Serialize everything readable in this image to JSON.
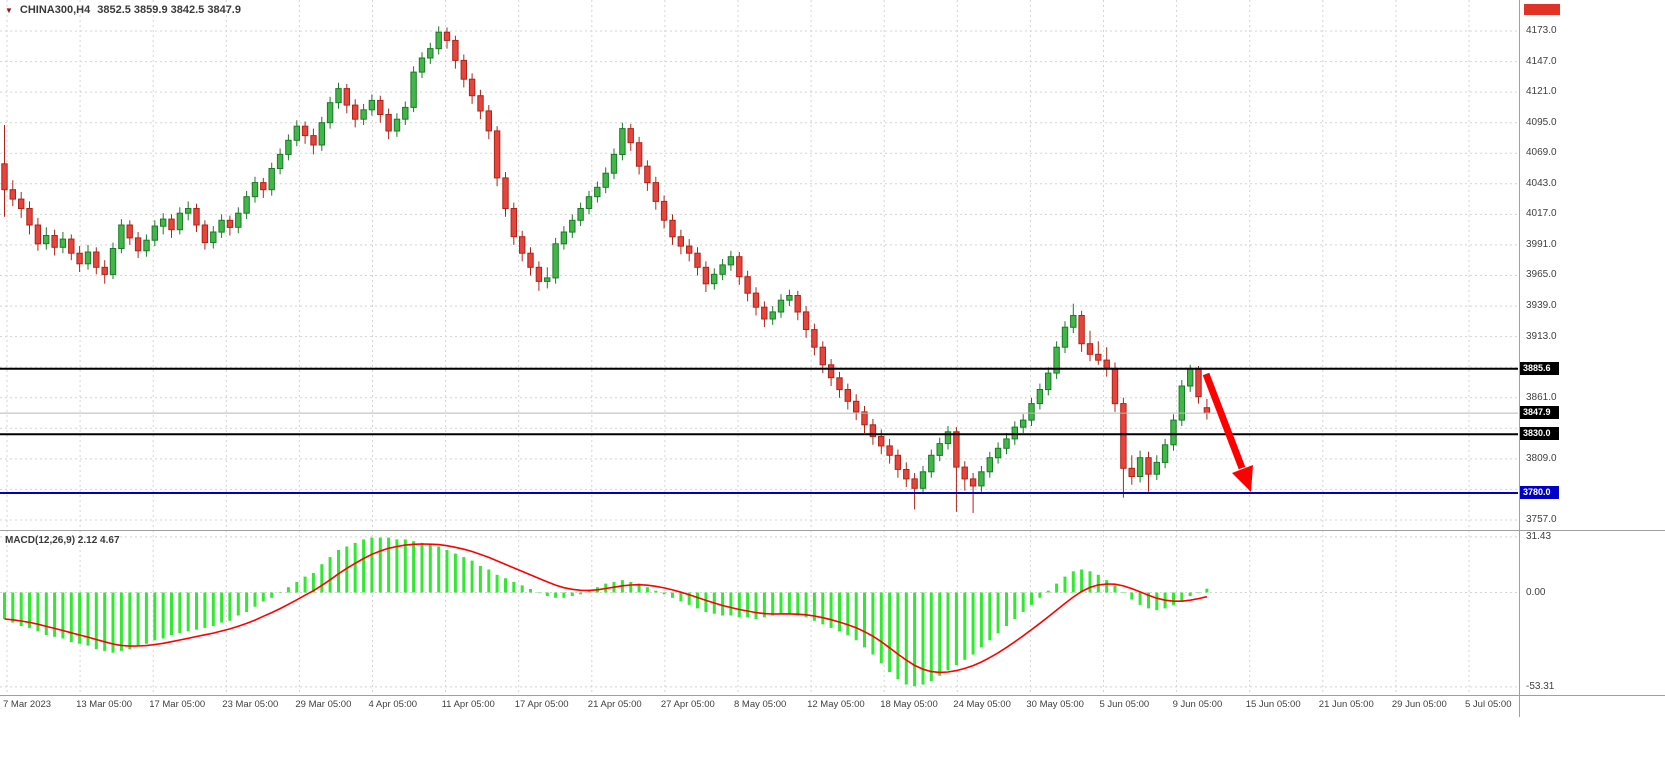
{
  "header": {
    "symbol": "CHINA300,H4",
    "ohlc": "3852.5 3859.9 3842.5 3847.9"
  },
  "colors": {
    "background": "#FFFFFF",
    "grid": "#D4D4D4",
    "candle_up": "#43B649",
    "candle_up_border": "#1A7A26",
    "candle_down": "#E5453C",
    "candle_down_border": "#AE2418",
    "macd_hist": "#33E833",
    "macd_signal": "#FF0000",
    "line_black": "#000000",
    "line_blue": "#0000C8",
    "arrow": "#FF0000",
    "marker_red": "#E03226"
  },
  "chart_data": {
    "type": "candlestick",
    "title": "CHINA300,H4",
    "symbol": "CHINA300",
    "timeframe": "H4",
    "current_ohlc": {
      "open": 3852.5,
      "high": 3859.9,
      "low": 3842.5,
      "close": 3847.9
    },
    "price_axis": {
      "grid_max": 4173,
      "grid_min": 3757,
      "grid_step": 26,
      "visible_values": [
        4173,
        4147,
        4121,
        4095,
        4069,
        4043,
        4017,
        3991,
        3965,
        3939,
        3913,
        3861,
        3809,
        3757
      ]
    },
    "line_markers": [
      {
        "label": "3885.6",
        "price": 3885.6,
        "color": "#000000",
        "box": "#000000",
        "width": 2
      },
      {
        "label": "3847.9",
        "price": 3847.9,
        "color": "#B8B8B8",
        "box": "#000000",
        "width": 1
      },
      {
        "label": "3830.0",
        "price": 3830.0,
        "color": "#000000",
        "box": "#000000",
        "width": 2
      },
      {
        "label": "3780.0",
        "price": 3780.0,
        "color": "#0000C8",
        "box": "#0000C8",
        "width": 2
      }
    ],
    "x_axis_labels": [
      "7 Mar 2023",
      "13 Mar 05:00",
      "17 Mar 05:00",
      "23 Mar 05:00",
      "29 Mar 05:00",
      "4 Apr 05:00",
      "11 Apr 05:00",
      "17 Apr 05:00",
      "21 Apr 05:00",
      "27 Apr 05:00",
      "8 May 05:00",
      "12 May 05:00",
      "18 May 05:00",
      "24 May 05:00",
      "30 May 05:00",
      "5 Jun 05:00",
      "9 Jun 05:00",
      "15 Jun 05:00",
      "21 Jun 05:00",
      "29 Jun 05:00",
      "5 Jul 05:00"
    ],
    "candles": [
      [
        4060,
        4093,
        4015,
        4038
      ],
      [
        4038,
        4046,
        4024,
        4030
      ],
      [
        4030,
        4036,
        4014,
        4022
      ],
      [
        4022,
        4028,
        4000,
        4008
      ],
      [
        4008,
        4014,
        3986,
        3992
      ],
      [
        3992,
        4006,
        3987,
        3999
      ],
      [
        3999,
        4004,
        3982,
        3989
      ],
      [
        3989,
        4002,
        3984,
        3996
      ],
      [
        3996,
        4000,
        3978,
        3984
      ],
      [
        3984,
        3990,
        3968,
        3975
      ],
      [
        3975,
        3991,
        3970,
        3985
      ],
      [
        3985,
        3989,
        3966,
        3972
      ],
      [
        3972,
        3978,
        3958,
        3966
      ],
      [
        3966,
        3993,
        3962,
        3988
      ],
      [
        3988,
        4013,
        3984,
        4008
      ],
      [
        4008,
        4012,
        3991,
        3997
      ],
      [
        3997,
        4002,
        3980,
        3986
      ],
      [
        3986,
        4000,
        3981,
        3995
      ],
      [
        3995,
        4012,
        3990,
        4007
      ],
      [
        4007,
        4018,
        4000,
        4013
      ],
      [
        4013,
        4017,
        3997,
        4004
      ],
      [
        4004,
        4023,
        4000,
        4018
      ],
      [
        4018,
        4028,
        4012,
        4022
      ],
      [
        4022,
        4026,
        4002,
        4008
      ],
      [
        4008,
        4012,
        3987,
        3993
      ],
      [
        3993,
        4007,
        3988,
        4002
      ],
      [
        4002,
        4017,
        3997,
        4012
      ],
      [
        4012,
        4016,
        3999,
        4006
      ],
      [
        4006,
        4023,
        4001,
        4018
      ],
      [
        4018,
        4037,
        4013,
        4032
      ],
      [
        4032,
        4049,
        4027,
        4044
      ],
      [
        4044,
        4048,
        4031,
        4038
      ],
      [
        4038,
        4061,
        4033,
        4056
      ],
      [
        4056,
        4073,
        4051,
        4068
      ],
      [
        4068,
        4085,
        4063,
        4080
      ],
      [
        4080,
        4097,
        4075,
        4092
      ],
      [
        4092,
        4096,
        4077,
        4084
      ],
      [
        4084,
        4090,
        4068,
        4076
      ],
      [
        4076,
        4100,
        4071,
        4095
      ],
      [
        4095,
        4117,
        4090,
        4112
      ],
      [
        4112,
        4129,
        4107,
        4124
      ],
      [
        4124,
        4128,
        4103,
        4110
      ],
      [
        4110,
        4115,
        4091,
        4098
      ],
      [
        4098,
        4111,
        4093,
        4106
      ],
      [
        4106,
        4119,
        4101,
        4114
      ],
      [
        4114,
        4118,
        4095,
        4102
      ],
      [
        4102,
        4107,
        4081,
        4088
      ],
      [
        4088,
        4103,
        4083,
        4098
      ],
      [
        4098,
        4113,
        4093,
        4108
      ],
      [
        4108,
        4143,
        4104,
        4138
      ],
      [
        4138,
        4155,
        4133,
        4150
      ],
      [
        4150,
        4163,
        4145,
        4158
      ],
      [
        4158,
        4177,
        4153,
        4172
      ],
      [
        4172,
        4176,
        4158,
        4165
      ],
      [
        4165,
        4169,
        4141,
        4148
      ],
      [
        4148,
        4153,
        4125,
        4132
      ],
      [
        4132,
        4137,
        4111,
        4118
      ],
      [
        4118,
        4123,
        4098,
        4105
      ],
      [
        4105,
        4110,
        4081,
        4088
      ],
      [
        4088,
        4092,
        4041,
        4048
      ],
      [
        4048,
        4053,
        4015,
        4022
      ],
      [
        4022,
        4027,
        3991,
        3998
      ],
      [
        3998,
        4003,
        3977,
        3984
      ],
      [
        3984,
        3989,
        3965,
        3972
      ],
      [
        3972,
        3977,
        3952,
        3960
      ],
      [
        3960,
        3972,
        3954,
        3963
      ],
      [
        3963,
        3997,
        3958,
        3992
      ],
      [
        3992,
        4007,
        3987,
        4002
      ],
      [
        4002,
        4017,
        3997,
        4012
      ],
      [
        4012,
        4027,
        4007,
        4022
      ],
      [
        4022,
        4037,
        4017,
        4032
      ],
      [
        4032,
        4045,
        4027,
        4040
      ],
      [
        4040,
        4057,
        4035,
        4052
      ],
      [
        4052,
        4073,
        4047,
        4068
      ],
      [
        4068,
        4095,
        4063,
        4090
      ],
      [
        4090,
        4094,
        4071,
        4078
      ],
      [
        4078,
        4083,
        4051,
        4058
      ],
      [
        4058,
        4063,
        4037,
        4044
      ],
      [
        4044,
        4049,
        4021,
        4028
      ],
      [
        4028,
        4033,
        4005,
        4012
      ],
      [
        4012,
        4017,
        3991,
        3998
      ],
      [
        3998,
        4004,
        3983,
        3990
      ],
      [
        3990,
        3996,
        3977,
        3984
      ],
      [
        3984,
        3989,
        3965,
        3972
      ],
      [
        3972,
        3977,
        3951,
        3958
      ],
      [
        3958,
        3971,
        3953,
        3966
      ],
      [
        3966,
        3979,
        3961,
        3974
      ],
      [
        3974,
        3986,
        3969,
        3981
      ],
      [
        3981,
        3985,
        3957,
        3964
      ],
      [
        3964,
        3969,
        3943,
        3950
      ],
      [
        3950,
        3955,
        3931,
        3938
      ],
      [
        3938,
        3943,
        3921,
        3928
      ],
      [
        3928,
        3939,
        3923,
        3934
      ],
      [
        3934,
        3949,
        3929,
        3944
      ],
      [
        3944,
        3953,
        3939,
        3948
      ],
      [
        3948,
        3952,
        3927,
        3934
      ],
      [
        3934,
        3939,
        3912,
        3919
      ],
      [
        3919,
        3924,
        3897,
        3904
      ],
      [
        3904,
        3909,
        3882,
        3889
      ],
      [
        3889,
        3894,
        3871,
        3878
      ],
      [
        3878,
        3883,
        3861,
        3868
      ],
      [
        3868,
        3873,
        3851,
        3858
      ],
      [
        3858,
        3864,
        3842,
        3849
      ],
      [
        3849,
        3854,
        3831,
        3838
      ],
      [
        3838,
        3843,
        3821,
        3828
      ],
      [
        3828,
        3834,
        3813,
        3820
      ],
      [
        3820,
        3826,
        3805,
        3812
      ],
      [
        3812,
        3817,
        3793,
        3800
      ],
      [
        3800,
        3806,
        3785,
        3792
      ],
      [
        3792,
        3797,
        3766,
        3784
      ],
      [
        3784,
        3803,
        3779,
        3798
      ],
      [
        3798,
        3817,
        3793,
        3812
      ],
      [
        3812,
        3827,
        3807,
        3822
      ],
      [
        3822,
        3837,
        3817,
        3832
      ],
      [
        3832,
        3836,
        3764,
        3802
      ],
      [
        3802,
        3807,
        3782,
        3792
      ],
      [
        3792,
        3797,
        3763,
        3786
      ],
      [
        3786,
        3803,
        3781,
        3798
      ],
      [
        3798,
        3815,
        3793,
        3810
      ],
      [
        3810,
        3823,
        3805,
        3818
      ],
      [
        3818,
        3831,
        3813,
        3826
      ],
      [
        3826,
        3841,
        3821,
        3836
      ],
      [
        3836,
        3847,
        3831,
        3842
      ],
      [
        3842,
        3861,
        3837,
        3856
      ],
      [
        3856,
        3873,
        3851,
        3868
      ],
      [
        3868,
        3887,
        3863,
        3882
      ],
      [
        3882,
        3909,
        3877,
        3904
      ],
      [
        3904,
        3926,
        3899,
        3921
      ],
      [
        3921,
        3941,
        3916,
        3931
      ],
      [
        3931,
        3935,
        3900,
        3907
      ],
      [
        3907,
        3918,
        3892,
        3898
      ],
      [
        3898,
        3909,
        3889,
        3893
      ],
      [
        3893,
        3904,
        3879,
        3886
      ],
      [
        3886,
        3891,
        3849,
        3856
      ],
      [
        3856,
        3861,
        3776,
        3801
      ],
      [
        3801,
        3812,
        3787,
        3794
      ],
      [
        3794,
        3816,
        3789,
        3810
      ],
      [
        3810,
        3815,
        3781,
        3796
      ],
      [
        3796,
        3812,
        3791,
        3806
      ],
      [
        3806,
        3826,
        3801,
        3821
      ],
      [
        3821,
        3847,
        3816,
        3842
      ],
      [
        3842,
        3876,
        3837,
        3871
      ],
      [
        3871,
        3889,
        3866,
        3886
      ],
      [
        3886,
        3888,
        3856,
        3862
      ],
      [
        3852.5,
        3859.9,
        3842.5,
        3847.9
      ]
    ],
    "macd": {
      "label": "MACD(12,26,9) 2.12 4.67",
      "params": "12,26,9",
      "macd_value": 2.12,
      "signal_value": 4.67,
      "signal_period": 9,
      "axis_labels": [
        "31.43",
        "0.00",
        "-53.31"
      ],
      "axis_values": [
        31.43,
        0,
        -53.31
      ],
      "histogram": [
        -15,
        -17,
        -19,
        -20,
        -22,
        -24,
        -25,
        -26,
        -28,
        -29,
        -30,
        -32,
        -33,
        -34,
        -33,
        -32,
        -30,
        -29,
        -27,
        -26,
        -24,
        -23,
        -22,
        -21,
        -20,
        -19,
        -17,
        -16,
        -13,
        -11,
        -8,
        -5,
        -3,
        0,
        3,
        6,
        9,
        11,
        16,
        20,
        24,
        26,
        28,
        30,
        31,
        31,
        31,
        30,
        30,
        29,
        28,
        27,
        26,
        24,
        22,
        20,
        18,
        15,
        13,
        10,
        8,
        6,
        4,
        2,
        0,
        -2,
        -3,
        -3,
        -2,
        -1,
        1,
        3,
        5,
        6,
        7,
        6,
        5,
        3,
        1,
        -1,
        -3,
        -5,
        -7,
        -9,
        -11,
        -12,
        -13,
        -13,
        -14,
        -14,
        -15,
        -14,
        -13,
        -12,
        -12,
        -13,
        -14,
        -16,
        -18,
        -20,
        -22,
        -24,
        -27,
        -31,
        -35,
        -40,
        -45,
        -49,
        -52,
        -53,
        -52,
        -50,
        -47,
        -44,
        -41,
        -38,
        -35,
        -31,
        -27,
        -23,
        -19,
        -15,
        -11,
        -7,
        -3,
        1,
        5,
        9,
        12,
        13,
        12,
        10,
        7,
        4,
        0,
        -4,
        -7,
        -9,
        -10,
        -9,
        -7,
        -5,
        -2,
        0,
        2.12
      ]
    },
    "annotations": [
      {
        "type": "arrow",
        "direction": "down-right",
        "color": "#FF0000"
      }
    ]
  }
}
